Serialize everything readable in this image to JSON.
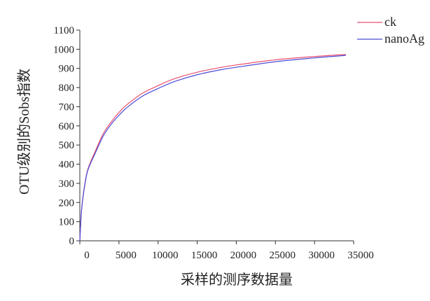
{
  "chart_data": {
    "type": "line",
    "title": "",
    "xlabel": "采样的测序数据量",
    "ylabel": "OTU级别的Sobs指数",
    "xlim": [
      0,
      35000
    ],
    "ylim": [
      0,
      1100
    ],
    "xticks": [
      0,
      5000,
      10000,
      15000,
      20000,
      25000,
      30000,
      35000
    ],
    "yticks": [
      0,
      100,
      200,
      300,
      400,
      500,
      600,
      700,
      800,
      900,
      1000,
      1100
    ],
    "grid": false,
    "legend": {
      "position": "top-right"
    },
    "series": [
      {
        "name": "ck",
        "color": "#e8506e",
        "x": [
          0,
          200,
          500,
          1000,
          2000,
          3000,
          4000,
          5000,
          6000,
          8000,
          10000,
          12000,
          15000,
          18000,
          20000,
          25000,
          30000,
          34000
        ],
        "y": [
          0,
          150,
          260,
          370,
          470,
          560,
          620,
          670,
          710,
          770,
          810,
          845,
          880,
          905,
          918,
          945,
          962,
          973
        ]
      },
      {
        "name": "nanoAg",
        "color": "#4a4ad8",
        "x": [
          0,
          200,
          500,
          1000,
          2000,
          3000,
          4000,
          5000,
          6000,
          8000,
          10000,
          12000,
          15000,
          18000,
          20000,
          25000,
          30000,
          34000
        ],
        "y": [
          0,
          150,
          255,
          365,
          460,
          548,
          608,
          655,
          695,
          755,
          795,
          830,
          867,
          893,
          906,
          935,
          955,
          968
        ]
      }
    ]
  }
}
